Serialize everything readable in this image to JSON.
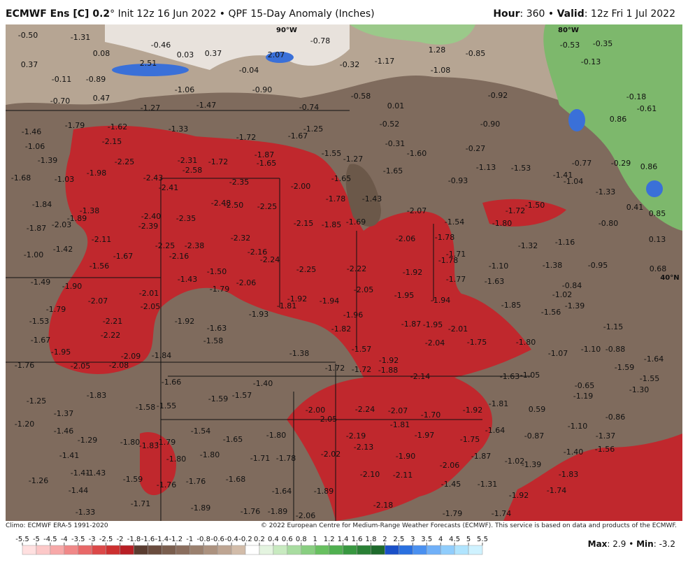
{
  "header": {
    "model": "ECMWF Ens [C] 0.2",
    "degree": "°",
    "init": "Init 12z 16 Jun 2022",
    "separator": "•",
    "product": "QPF 15-Day Anomaly (Inches)",
    "hour_label": "Hour",
    "hour": ": 360",
    "valid_label": "Valid",
    "valid": ": 12z Fri 1 Jul 2022"
  },
  "map": {
    "graticule": [
      "90°W",
      "80°W",
      "40°N"
    ],
    "labels": [
      "-0.50",
      "-1.31",
      "0.08",
      "-0.46",
      "0.03",
      "0.37",
      "0.37",
      "2.51",
      "2.07",
      "-0.78",
      "1.28",
      "-0.85",
      "-0.53",
      "-0.35",
      "-0.13",
      "-0.11",
      "-0.89",
      "-0.04",
      "-0.32",
      "-1.17",
      "-1.08",
      "-1.06",
      "-0.90",
      "-0.58",
      "-0.70",
      "0.47",
      "-1.27",
      "-1.47",
      "-0.74",
      "0.01",
      "-0.92",
      "-0.18",
      "-0.61",
      "0.86",
      "-1.46",
      "-1.79",
      "-1.62",
      "-1.33",
      "-1.25",
      "-0.52",
      "-0.90",
      "-1.06",
      "-2.15",
      "-1.72",
      "-1.67",
      "-0.31",
      "-1.60",
      "-0.27",
      "-1.39",
      "-2.25",
      "-2.31",
      "-1.72",
      "-1.87",
      "-1.65",
      "-1.55",
      "-1.27",
      "-1.13",
      "-1.53",
      "-0.77",
      "-0.29",
      "0.86",
      "-1.98",
      "-2.58",
      "-1.65",
      "-1.68",
      "-1.03",
      "-2.43",
      "-2.35",
      "-1.65",
      "-0.93",
      "-1.41",
      "-2.41",
      "-2.00",
      "-1.04",
      "-1.33",
      "-1.84",
      "-2.48",
      "-2.50",
      "-2.25",
      "-1.78",
      "-1.43",
      "-1.50",
      "-1.38",
      "-1.89",
      "-2.40",
      "-2.35",
      "-2.07",
      "-1.72",
      "0.41",
      "0.85",
      "-1.87",
      "-2.03",
      "-2.39",
      "-2.15",
      "-1.85",
      "-1.69",
      "-1.54",
      "-1.80",
      "-0.80",
      "-2.11",
      "-2.32",
      "-2.06",
      "-1.78",
      "-1.16",
      "0.13",
      "-1.42",
      "-2.25",
      "-2.38",
      "-1.32",
      "-1.00",
      "-1.67",
      "-2.16",
      "-2.16",
      "-1.71",
      "-1.56",
      "-2.24",
      "-2.25",
      "-2.22",
      "-1.78",
      "-1.10",
      "-1.38",
      "-0.95",
      "0.68",
      "-1.50",
      "-1.92",
      "-1.49",
      "-1.43",
      "-2.06",
      "-1.77",
      "-1.63",
      "-1.90",
      "-1.79",
      "-2.05",
      "-0.84",
      "-2.01",
      "-1.95",
      "-1.02",
      "-2.07",
      "-1.92",
      "-1.94",
      "-1.94",
      "-1.85",
      "-1.39",
      "-2.05",
      "-1.81",
      "-1.79",
      "-1.56",
      "-1.93",
      "-1.96",
      "-1.53",
      "-2.21",
      "-1.92",
      "-1.87",
      "-1.95",
      "-2.01",
      "-1.15",
      "-1.63",
      "-1.82",
      "-2.22",
      "-1.67",
      "-1.58",
      "-2.04",
      "-1.75",
      "-1.80",
      "-1.57",
      "-1.95",
      "-2.09",
      "-1.84",
      "-1.38",
      "-1.10",
      "-0.88",
      "-1.07",
      "-1.76",
      "-2.05",
      "-2.08",
      "-1.92",
      "-1.64",
      "-1.59",
      "-1.72",
      "-1.72",
      "-1.88",
      "-2.14",
      "-1.63",
      "-1.05",
      "-1.55",
      "-1.66",
      "-1.40",
      "-0.65",
      "-1.30",
      "-1.83",
      "-1.59",
      "-1.57",
      "-1.19",
      "-1.25",
      "-1.58",
      "-1.55",
      "-2.00",
      "-2.24",
      "-2.07",
      "-1.92",
      "-1.81",
      "0.59",
      "-1.37",
      "-2.05",
      "-1.70",
      "-0.86",
      "-1.20",
      "-1.81",
      "-1.10",
      "-1.46",
      "-1.54",
      "-1.64",
      "-1.97",
      "-1.80",
      "-2.19",
      "-1.75",
      "-0.87",
      "-1.37",
      "-1.29",
      "-1.65",
      "-1.80",
      "-1.83",
      "-1.79",
      "-2.13",
      "-1.40",
      "-1.56",
      "-1.41",
      "-1.80",
      "-2.02",
      "-1.90",
      "-1.87",
      "-1.80",
      "-1.71",
      "-1.78",
      "-1.02",
      "-1.39",
      "-2.06",
      "-1.41",
      "-1.43",
      "-2.10",
      "-2.11",
      "-1.83",
      "-1.26",
      "-1.59",
      "-1.76",
      "-1.76",
      "-1.68",
      "-1.45",
      "-1.31",
      "-1.44",
      "-1.64",
      "-1.89",
      "-1.74",
      "-1.92",
      "-2.18",
      "-1.71",
      "-1.89",
      "-1.33",
      "-1.76",
      "-1.89",
      "-2.06",
      "-1.79",
      "-1.74"
    ]
  },
  "footer": {
    "climo": "Climo: ECMWF ERA-5 1991-2020",
    "copyright": "© 2022 European Centre for Medium-Range Weather Forecasts (ECMWF). This service is based on data and products of the ECMWF.",
    "max_label": "Max",
    "max": ": 2.9",
    "separator": "•",
    "min_label": "Min",
    "min": ": -3.2"
  },
  "legend": {
    "ticks": [
      -5.5,
      -5,
      -4.5,
      -4,
      -3.5,
      -3,
      -2.5,
      -2,
      -1.8,
      -1.6,
      -1.4,
      -1.2,
      -1,
      -0.8,
      -0.6,
      -0.4,
      -0.2,
      0.2,
      0.4,
      0.6,
      0.8,
      1,
      1.2,
      1.4,
      1.6,
      1.8,
      2,
      2.5,
      3,
      3.5,
      4,
      4.5,
      5,
      5.5
    ],
    "colors": [
      "#ffe0e0",
      "#fcc8c8",
      "#f7a8a8",
      "#f08888",
      "#e86868",
      "#dc4848",
      "#cc3030",
      "#b81f25",
      "#5a3c30",
      "#6a4c3e",
      "#7a5e4e",
      "#8a6e5e",
      "#9a806e",
      "#ac927f",
      "#bea592",
      "#d2bca9",
      "#ffffff",
      "#e4f4e0",
      "#c8eac0",
      "#a8dca0",
      "#88ce80",
      "#68c060",
      "#50b050",
      "#389840",
      "#2a8035",
      "#1e6a2c",
      "#1a50c8",
      "#2a70e0",
      "#4a90f0",
      "#70b0f8",
      "#90cdfc",
      "#b0e4fe",
      "#cff2ff"
    ]
  }
}
